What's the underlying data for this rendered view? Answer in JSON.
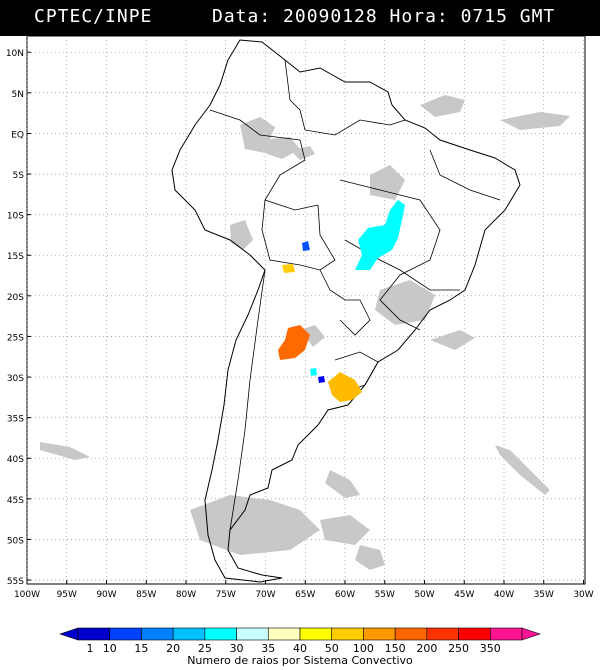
{
  "header": {
    "source": "CPTEC/INPE",
    "datetime": "Data: 20090128 Hora: 0715 GMT"
  },
  "map": {
    "lat_labels": [
      "10N",
      "5N",
      "EQ",
      "5S",
      "10S",
      "15S",
      "20S",
      "25S",
      "30S",
      "35S",
      "40S",
      "45S",
      "50S",
      "55S"
    ],
    "lon_labels": [
      "100W",
      "95W",
      "90W",
      "85W",
      "80W",
      "75W",
      "70W",
      "65W",
      "60W",
      "55W",
      "50W",
      "45W",
      "40W",
      "35W",
      "30W"
    ],
    "colors": {
      "coast": "#000000",
      "grid": "#808080",
      "cloud": "#c8c8c8"
    },
    "systems": [
      {
        "id": "brazil-central",
        "color": "#00ffff"
      },
      {
        "id": "bolivia-small",
        "color": "#0050ff"
      },
      {
        "id": "paraguay-yellow",
        "color": "#ffcc00"
      },
      {
        "id": "argentina-orange",
        "color": "#ff6a00"
      },
      {
        "id": "argentina-small-cyan",
        "color": "#00ffff"
      },
      {
        "id": "argentina-small-blue",
        "color": "#0000ff"
      },
      {
        "id": "uruguay-yellow",
        "color": "#ffbb00"
      }
    ]
  },
  "colorbar": {
    "title": "Numero de raios por Sistema Convectivo",
    "ticks": [
      "1",
      "10",
      "15",
      "20",
      "25",
      "30",
      "35",
      "40",
      "50",
      "100",
      "150",
      "200",
      "250",
      "350"
    ],
    "colors": [
      "#0000cc",
      "#0040ff",
      "#0080ff",
      "#00bfff",
      "#00ffff",
      "#c8ffff",
      "#ffffbf",
      "#ffff00",
      "#ffcc00",
      "#ff9900",
      "#ff6600",
      "#ff3300",
      "#ff0000",
      "#ff1493"
    ]
  }
}
